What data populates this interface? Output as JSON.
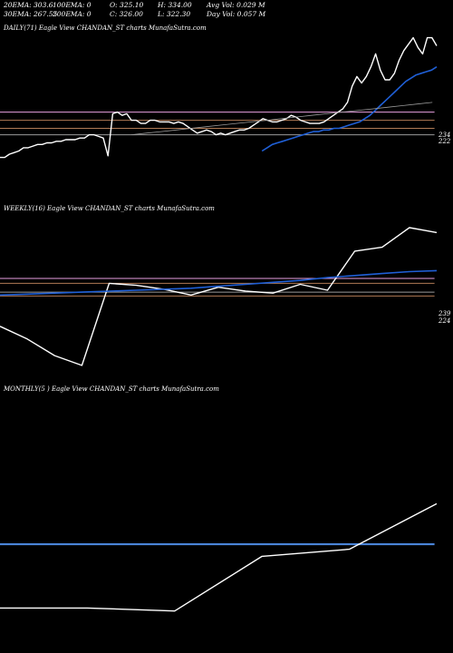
{
  "stats": {
    "row1": [
      "20EMA: 303.6",
      "100EMA: 0",
      "O: 325.10",
      "H: 334.00",
      "Avg Vol: 0.029 M"
    ],
    "row2": [
      "30EMA: 267.55",
      "200EMA: 0",
      "C: 326.00",
      "L: 322.30",
      "Day Vol: 0.057 M"
    ]
  },
  "colors": {
    "background": "#000000",
    "price": "#ffffff",
    "ema_blue": "#1f5fd6",
    "ema_gray": "#9a9a9a",
    "ref_pink": "#e8a0e0",
    "ref_brown": "#b07a55",
    "monthly_blue": "#4a84d8"
  },
  "chart_data": [
    {
      "type": "line",
      "title": "DAILY(71) Eagle   View  CHANDAN_ST charts MunafaSutra.com",
      "axis_labels": [
        "234",
        "222"
      ],
      "ylim": [
        225,
        276
      ],
      "reference_lines": [
        {
          "value": 252,
          "color": "#e8a0e0"
        },
        {
          "value": 249.5,
          "color": "#b07a55"
        },
        {
          "value": 247,
          "color": "#b07a55"
        },
        {
          "value": 245,
          "color": "#9a9a9a"
        }
      ],
      "series": [
        {
          "role": "price",
          "color": "#ffffff",
          "values": [
            238,
            238,
            239,
            239.5,
            240,
            241,
            241,
            241.5,
            242,
            242,
            242.5,
            242.5,
            243,
            243,
            243.5,
            243.5,
            243.5,
            244,
            244,
            245,
            245,
            244.5,
            244,
            238.5,
            251.5,
            252,
            251,
            251.5,
            249.5,
            249.5,
            248.5,
            248.5,
            249.5,
            249.5,
            249,
            249,
            249,
            248.5,
            249,
            248.5,
            247.5,
            246.5,
            245.5,
            246,
            246.5,
            246,
            245,
            245.5,
            245,
            245.5,
            246,
            246.5,
            246.5,
            247,
            248,
            249,
            250,
            249.5,
            249,
            249,
            249.5,
            250,
            251,
            250.5,
            249.5,
            249,
            248.5,
            248.5,
            248.5,
            249,
            250,
            251,
            252,
            253,
            255,
            260,
            263,
            261,
            263,
            266,
            270,
            265,
            262,
            262,
            264,
            268,
            271,
            273,
            275,
            272,
            270,
            275,
            275,
            272.5
          ]
        },
        {
          "role": "ema_blue",
          "color": "#1f5fd6",
          "values": [
            240,
            241,
            242,
            242.5,
            243,
            243.5,
            244,
            244.5,
            245,
            245.5,
            246,
            246,
            246.5,
            246.5,
            247,
            247,
            247.5,
            248,
            248.5,
            249,
            250,
            251,
            252.5,
            254,
            255.5,
            257,
            258.5,
            260,
            261.5,
            262.5,
            263.5,
            264,
            264.5,
            265,
            266
          ]
        },
        {
          "role": "ema_gray",
          "color": "#9a9a9a",
          "values": [
            245,
            245.5,
            246,
            246.5,
            247,
            247.5,
            248,
            248.5,
            249,
            249.5,
            250,
            250.5,
            251,
            251.5,
            252,
            252.5,
            253,
            253.5,
            254,
            254.5,
            255
          ]
        }
      ]
    },
    {
      "type": "line",
      "title": "WEEKLY(16) Eagle   View  CHANDAN_ST charts MunafaSutra.com",
      "axis_labels": [
        "239",
        "224"
      ],
      "ylim": [
        193,
        277
      ],
      "reference_lines": [
        {
          "value": 244.5,
          "color": "#e8a0e0"
        },
        {
          "value": 242,
          "color": "#b07a55"
        },
        {
          "value": 237.5,
          "color": "#9a9a9a"
        },
        {
          "value": 235.5,
          "color": "#b07a55"
        }
      ],
      "series": [
        {
          "role": "price",
          "color": "#ffffff",
          "values": [
            220,
            213.5,
            205,
            200,
            242,
            241,
            239,
            236,
            240,
            238,
            237,
            241.5,
            238.5,
            258.5,
            260.5,
            270.5,
            268
          ]
        },
        {
          "role": "ema_blue",
          "color": "#1f5fd6",
          "values": [
            236,
            236.5,
            237,
            237.5,
            238,
            238.5,
            239,
            239.5,
            240.5,
            241.5,
            242.5,
            243.5,
            245,
            246,
            247,
            248,
            248.5
          ]
        }
      ]
    },
    {
      "type": "line",
      "title": "MONTHLY(5                    ) Eagle   View  CHANDAN_ST charts MunafaSutra.com",
      "axis_labels": [],
      "ylim": [
        0,
        125
      ],
      "reference_lines": [
        {
          "value": 51.5,
          "color": "#4a84d8"
        }
      ],
      "series": [
        {
          "role": "price",
          "color": "#ffffff",
          "values": [
            20,
            20,
            18.5,
            45.5,
            49,
            71.5
          ]
        }
      ]
    }
  ]
}
